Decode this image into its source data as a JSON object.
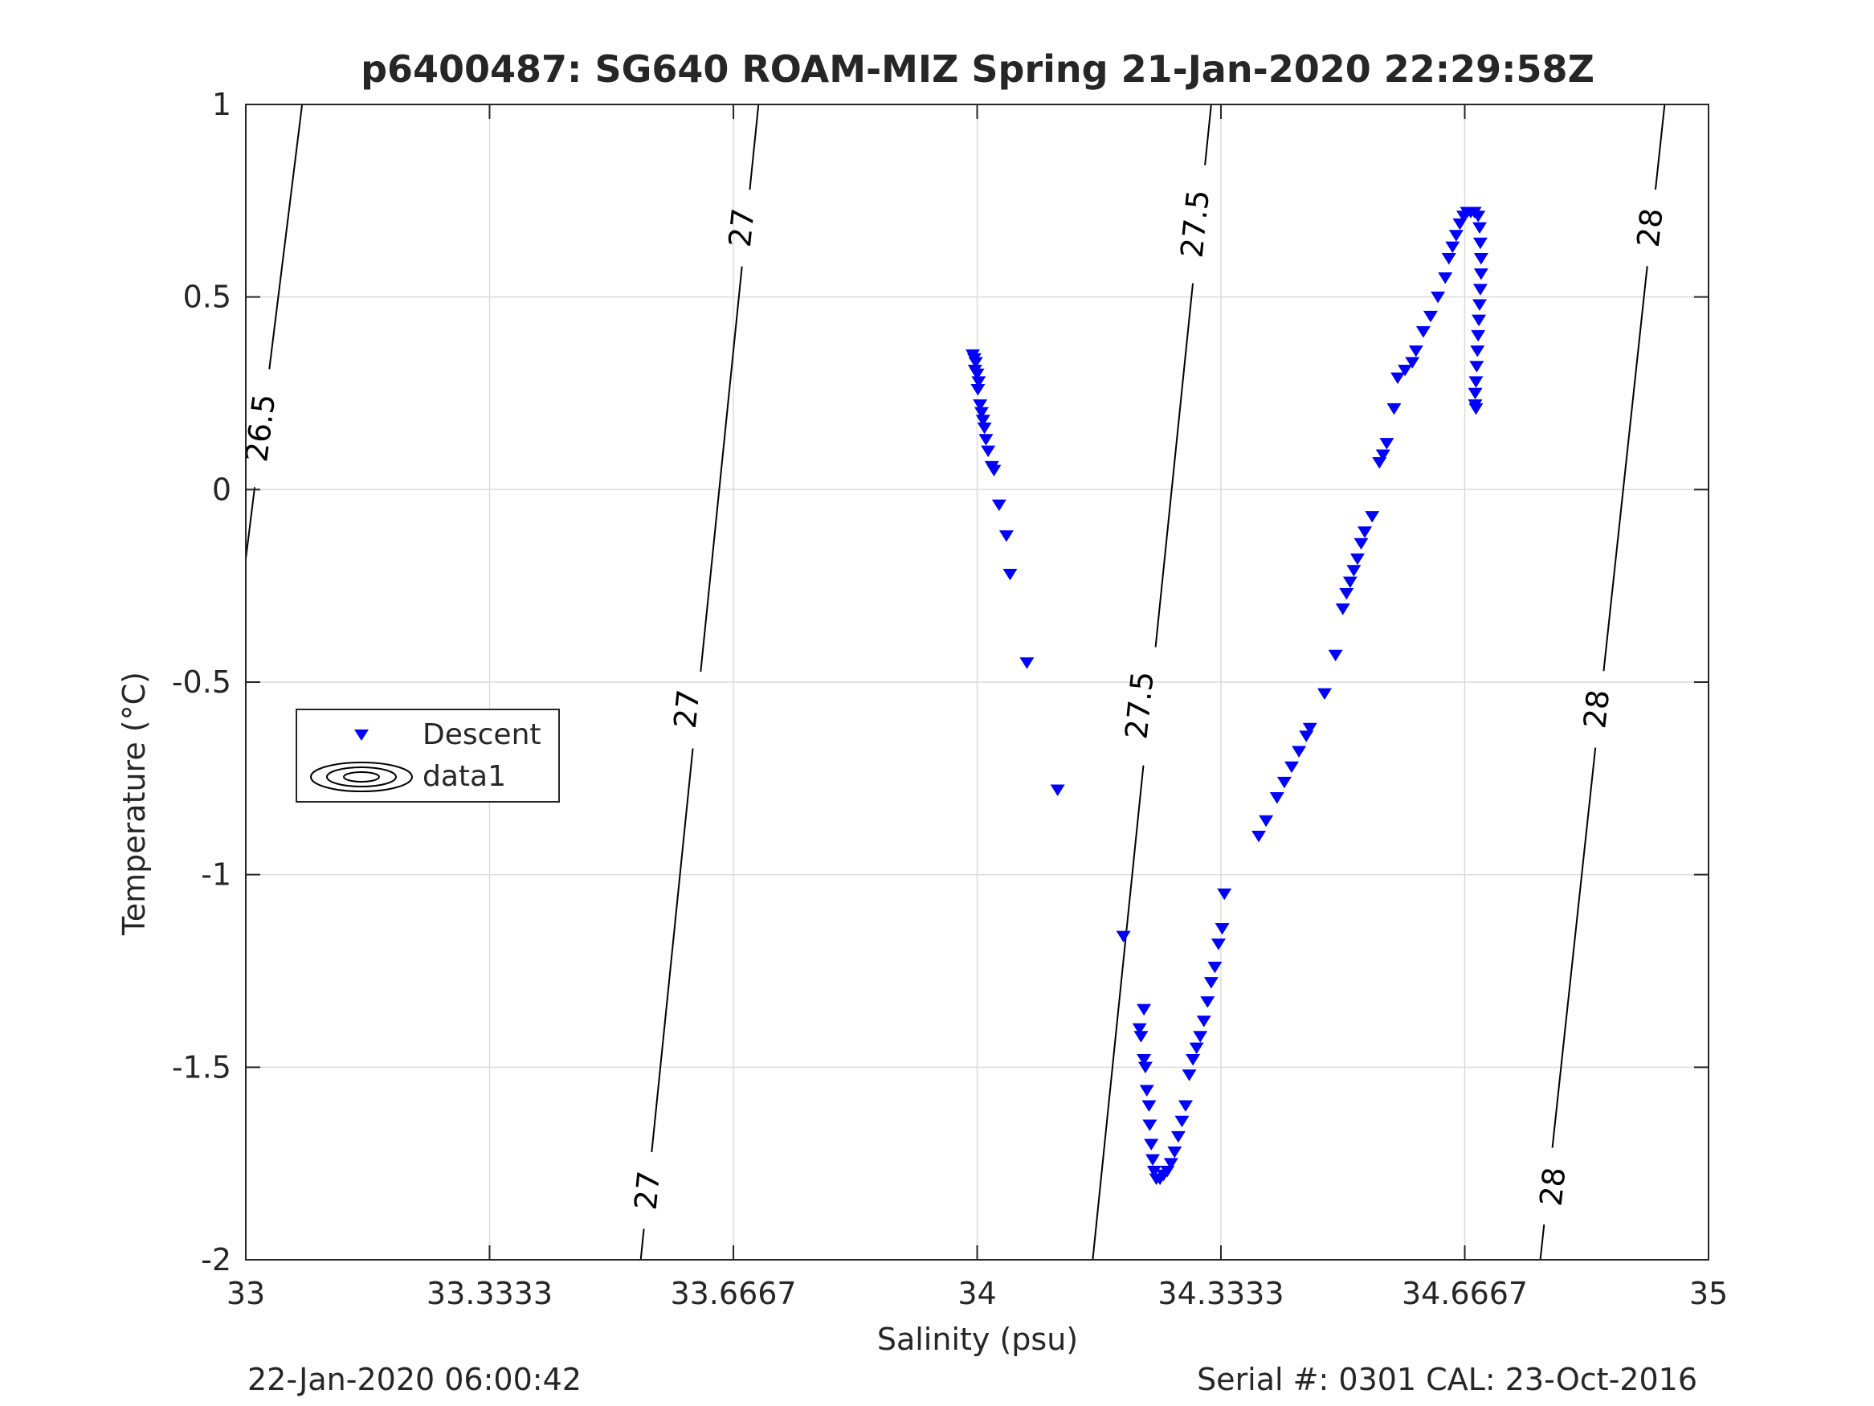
{
  "chart_data": {
    "type": "scatter",
    "title": "p6400487: SG640 ROAM-MIZ Spring 21-Jan-2020 22:29:58Z",
    "xlabel": "Salinity (psu)",
    "ylabel": "Temperature (°C)",
    "xlim": [
      33,
      35
    ],
    "ylim": [
      -2,
      1
    ],
    "xticks": [
      33,
      33.3333,
      33.6667,
      34,
      34.3333,
      34.6667,
      35
    ],
    "xtick_labels": [
      "33",
      "33.3333",
      "33.6667",
      "34",
      "34.3333",
      "34.6667",
      "35"
    ],
    "yticks": [
      -2,
      -1.5,
      -1,
      -0.5,
      0,
      0.5,
      1
    ],
    "ytick_labels": [
      "-2",
      "-1.5",
      "-1",
      "-0.5",
      "0",
      "0.5",
      "1"
    ],
    "grid": true,
    "legend": {
      "position": "middle-left",
      "entries": [
        "Descent",
        "data1"
      ]
    },
    "marker_color": "#0000ff",
    "series": [
      {
        "name": "Descent",
        "marker": "triangle-down",
        "points": [
          [
            33.994,
            0.35
          ],
          [
            33.996,
            0.34
          ],
          [
            33.998,
            0.33
          ],
          [
            33.997,
            0.31
          ],
          [
            34.0,
            0.3
          ],
          [
            34.002,
            0.28
          ],
          [
            34.001,
            0.26
          ],
          [
            34.004,
            0.22
          ],
          [
            34.006,
            0.2
          ],
          [
            34.008,
            0.18
          ],
          [
            34.01,
            0.16
          ],
          [
            34.012,
            0.13
          ],
          [
            34.015,
            0.1
          ],
          [
            34.02,
            0.06
          ],
          [
            34.023,
            0.05
          ],
          [
            34.03,
            -0.04
          ],
          [
            34.04,
            -0.12
          ],
          [
            34.045,
            -0.22
          ],
          [
            34.068,
            -0.45
          ],
          [
            34.11,
            -0.78
          ],
          [
            34.2,
            -1.16
          ],
          [
            34.228,
            -1.35
          ],
          [
            34.222,
            -1.4
          ],
          [
            34.224,
            -1.42
          ],
          [
            34.228,
            -1.48
          ],
          [
            34.23,
            -1.5
          ],
          [
            34.232,
            -1.56
          ],
          [
            34.235,
            -1.6
          ],
          [
            34.236,
            -1.65
          ],
          [
            34.238,
            -1.7
          ],
          [
            34.24,
            -1.74
          ],
          [
            34.242,
            -1.77
          ],
          [
            34.245,
            -1.79
          ],
          [
            34.25,
            -1.79
          ],
          [
            34.255,
            -1.78
          ],
          [
            34.26,
            -1.77
          ],
          [
            34.265,
            -1.75
          ],
          [
            34.27,
            -1.72
          ],
          [
            34.275,
            -1.68
          ],
          [
            34.28,
            -1.64
          ],
          [
            34.285,
            -1.6
          ],
          [
            34.29,
            -1.52
          ],
          [
            34.295,
            -1.48
          ],
          [
            34.3,
            -1.45
          ],
          [
            34.305,
            -1.42
          ],
          [
            34.31,
            -1.38
          ],
          [
            34.315,
            -1.33
          ],
          [
            34.32,
            -1.28
          ],
          [
            34.325,
            -1.24
          ],
          [
            34.33,
            -1.18
          ],
          [
            34.335,
            -1.14
          ],
          [
            34.338,
            -1.05
          ],
          [
            34.385,
            -0.9
          ],
          [
            34.395,
            -0.86
          ],
          [
            34.41,
            -0.8
          ],
          [
            34.42,
            -0.76
          ],
          [
            34.43,
            -0.72
          ],
          [
            34.44,
            -0.68
          ],
          [
            34.45,
            -0.64
          ],
          [
            34.455,
            -0.62
          ],
          [
            34.475,
            -0.53
          ],
          [
            34.49,
            -0.43
          ],
          [
            34.5,
            -0.31
          ],
          [
            34.505,
            -0.27
          ],
          [
            34.51,
            -0.24
          ],
          [
            34.515,
            -0.21
          ],
          [
            34.52,
            -0.18
          ],
          [
            34.525,
            -0.14
          ],
          [
            34.53,
            -0.11
          ],
          [
            34.54,
            -0.07
          ],
          [
            34.55,
            0.07
          ],
          [
            34.555,
            0.09
          ],
          [
            34.56,
            0.12
          ],
          [
            34.57,
            0.21
          ],
          [
            34.575,
            0.29
          ],
          [
            34.585,
            0.31
          ],
          [
            34.595,
            0.33
          ],
          [
            34.6,
            0.36
          ],
          [
            34.61,
            0.41
          ],
          [
            34.62,
            0.45
          ],
          [
            34.63,
            0.5
          ],
          [
            34.64,
            0.55
          ],
          [
            34.645,
            0.6
          ],
          [
            34.65,
            0.63
          ],
          [
            34.655,
            0.66
          ],
          [
            34.66,
            0.69
          ],
          [
            34.665,
            0.71
          ],
          [
            34.67,
            0.72
          ],
          [
            34.675,
            0.72
          ],
          [
            34.68,
            0.72
          ],
          [
            34.685,
            0.71
          ],
          [
            34.687,
            0.68
          ],
          [
            34.688,
            0.64
          ],
          [
            34.689,
            0.6
          ],
          [
            34.689,
            0.56
          ],
          [
            34.688,
            0.52
          ],
          [
            34.687,
            0.48
          ],
          [
            34.686,
            0.44
          ],
          [
            34.685,
            0.4
          ],
          [
            34.684,
            0.36
          ],
          [
            34.683,
            0.32
          ],
          [
            34.682,
            0.28
          ],
          [
            34.681,
            0.25
          ],
          [
            34.681,
            0.22
          ],
          [
            34.682,
            0.21
          ]
        ]
      }
    ],
    "contours": {
      "name": "data1",
      "lines": [
        {
          "label": "26.5",
          "points": [
            [
              33.077,
              1.0
            ],
            [
              33.0,
              -0.18
            ]
          ],
          "label_positions": [
            [
              33.02,
              0.16
            ]
          ]
        },
        {
          "label": "27",
          "points": [
            [
              33.701,
              1.0
            ],
            [
              33.54,
              -2.0
            ]
          ],
          "label_positions": [
            [
              33.678,
              0.68
            ],
            [
              33.603,
              -0.57
            ],
            [
              33.549,
              -1.82
            ]
          ]
        },
        {
          "label": "27.5",
          "points": [
            [
              34.32,
              1.0
            ],
            [
              34.158,
              -2.0
            ]
          ],
          "label_positions": [
            [
              34.298,
              0.69
            ],
            [
              34.222,
              -0.56
            ]
          ]
        },
        {
          "label": "28",
          "points": [
            [
              34.94,
              1.0
            ],
            [
              34.77,
              -2.0
            ]
          ],
          "label_positions": [
            [
              34.92,
              0.68
            ],
            [
              34.847,
              -0.57
            ],
            [
              34.787,
              -1.81
            ]
          ]
        }
      ]
    }
  },
  "footer": {
    "date": "22-Jan-2020 06:00:42",
    "serial": "Serial #: 0301  CAL: 23-Oct-2016"
  }
}
